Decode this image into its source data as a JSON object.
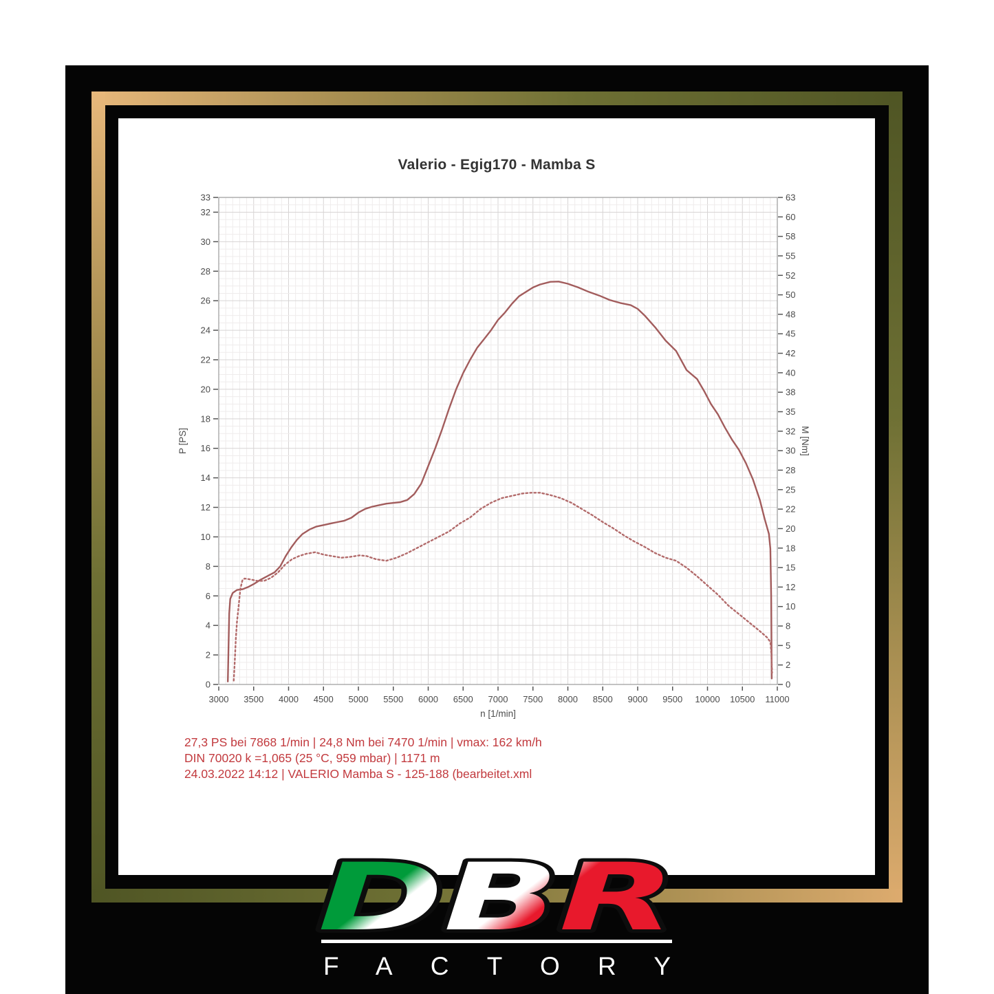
{
  "colors": {
    "frame_gold_light": "#e8b87b",
    "frame_gold_dark": "#4f5524",
    "backdrop_black": "#050505",
    "annotation_red": "#c23a3e",
    "curve_red": "#a25c5c"
  },
  "chart_data": {
    "type": "line",
    "title": "Valerio - Egig170 - Mamba S",
    "xlabel": "n [1/min]",
    "ylabel_left": "P [PS]",
    "ylabel_right": "M [Nm]",
    "grid": true,
    "xlim": [
      3000,
      11000
    ],
    "grid_minor_x": 100,
    "grid_minor_y": 0.5,
    "x_ticks": [
      3000,
      3500,
      4000,
      4500,
      5000,
      5500,
      6000,
      6500,
      7000,
      7500,
      8000,
      8500,
      9000,
      9500,
      10000,
      10500,
      11000
    ],
    "ylim_left": [
      0,
      33
    ],
    "y_ticks_left": [
      0,
      2,
      4,
      6,
      8,
      10,
      12,
      14,
      16,
      18,
      20,
      22,
      24,
      26,
      28,
      30,
      32,
      33
    ],
    "ylim_right": [
      0,
      63
    ],
    "y_ticks_right": [
      0,
      2,
      5,
      8,
      10,
      12,
      15,
      18,
      20,
      22,
      25,
      28,
      30,
      32,
      35,
      38,
      40,
      42,
      45,
      48,
      50,
      52,
      55,
      58,
      60,
      63
    ],
    "series": [
      {
        "name": "Power P [PS]",
        "axis": "left",
        "style": "solid",
        "color": "#a25c5c",
        "points": [
          [
            3130,
            0.2
          ],
          [
            3140,
            2.5
          ],
          [
            3150,
            4.8
          ],
          [
            3165,
            5.8
          ],
          [
            3200,
            6.2
          ],
          [
            3260,
            6.4
          ],
          [
            3340,
            6.45
          ],
          [
            3420,
            6.6
          ],
          [
            3500,
            6.8
          ],
          [
            3600,
            7.1
          ],
          [
            3700,
            7.35
          ],
          [
            3800,
            7.6
          ],
          [
            3880,
            8.0
          ],
          [
            3960,
            8.7
          ],
          [
            4040,
            9.3
          ],
          [
            4120,
            9.8
          ],
          [
            4200,
            10.2
          ],
          [
            4300,
            10.5
          ],
          [
            4400,
            10.7
          ],
          [
            4500,
            10.8
          ],
          [
            4600,
            10.9
          ],
          [
            4700,
            11.0
          ],
          [
            4800,
            11.1
          ],
          [
            4900,
            11.3
          ],
          [
            5000,
            11.65
          ],
          [
            5100,
            11.9
          ],
          [
            5200,
            12.05
          ],
          [
            5300,
            12.15
          ],
          [
            5400,
            12.25
          ],
          [
            5500,
            12.3
          ],
          [
            5600,
            12.35
          ],
          [
            5700,
            12.5
          ],
          [
            5800,
            12.9
          ],
          [
            5900,
            13.6
          ],
          [
            6000,
            14.8
          ],
          [
            6100,
            16.0
          ],
          [
            6200,
            17.3
          ],
          [
            6300,
            18.7
          ],
          [
            6400,
            20.0
          ],
          [
            6500,
            21.1
          ],
          [
            6600,
            22.0
          ],
          [
            6700,
            22.8
          ],
          [
            6800,
            23.4
          ],
          [
            6900,
            24.0
          ],
          [
            7000,
            24.7
          ],
          [
            7100,
            25.2
          ],
          [
            7200,
            25.8
          ],
          [
            7300,
            26.3
          ],
          [
            7400,
            26.6
          ],
          [
            7500,
            26.9
          ],
          [
            7600,
            27.1
          ],
          [
            7750,
            27.28
          ],
          [
            7868,
            27.3
          ],
          [
            8000,
            27.15
          ],
          [
            8150,
            26.9
          ],
          [
            8300,
            26.6
          ],
          [
            8450,
            26.35
          ],
          [
            8600,
            26.05
          ],
          [
            8750,
            25.85
          ],
          [
            8900,
            25.7
          ],
          [
            9000,
            25.45
          ],
          [
            9100,
            25.0
          ],
          [
            9250,
            24.2
          ],
          [
            9400,
            23.3
          ],
          [
            9550,
            22.6
          ],
          [
            9700,
            21.3
          ],
          [
            9850,
            20.7
          ],
          [
            9950,
            19.9
          ],
          [
            10050,
            19.0
          ],
          [
            10150,
            18.3
          ],
          [
            10250,
            17.4
          ],
          [
            10350,
            16.6
          ],
          [
            10450,
            15.9
          ],
          [
            10550,
            15.0
          ],
          [
            10650,
            13.9
          ],
          [
            10750,
            12.5
          ],
          [
            10820,
            11.2
          ],
          [
            10880,
            10.2
          ],
          [
            10900,
            9.2
          ],
          [
            10912,
            6.0
          ],
          [
            10920,
            0.4
          ]
        ]
      },
      {
        "name": "Torque M [Nm]",
        "axis": "right",
        "style": "dotted",
        "color": "#b26a6a",
        "points": [
          [
            3215,
            0.5
          ],
          [
            3230,
            3.0
          ],
          [
            3245,
            6.0
          ],
          [
            3260,
            8.0
          ],
          [
            3280,
            9.7
          ],
          [
            3310,
            12.4
          ],
          [
            3340,
            13.5
          ],
          [
            3370,
            13.7
          ],
          [
            3450,
            13.6
          ],
          [
            3550,
            13.4
          ],
          [
            3650,
            13.4
          ],
          [
            3750,
            13.8
          ],
          [
            3850,
            14.5
          ],
          [
            3950,
            15.5
          ],
          [
            4050,
            16.2
          ],
          [
            4150,
            16.6
          ],
          [
            4250,
            16.9
          ],
          [
            4380,
            17.1
          ],
          [
            4500,
            16.8
          ],
          [
            4620,
            16.6
          ],
          [
            4760,
            16.4
          ],
          [
            4880,
            16.5
          ],
          [
            5020,
            16.7
          ],
          [
            5120,
            16.6
          ],
          [
            5250,
            16.2
          ],
          [
            5400,
            16.0
          ],
          [
            5550,
            16.4
          ],
          [
            5700,
            17.0
          ],
          [
            5850,
            17.7
          ],
          [
            6000,
            18.4
          ],
          [
            6150,
            19.1
          ],
          [
            6300,
            19.8
          ],
          [
            6450,
            20.8
          ],
          [
            6600,
            21.6
          ],
          [
            6750,
            22.7
          ],
          [
            6900,
            23.5
          ],
          [
            7050,
            24.1
          ],
          [
            7200,
            24.4
          ],
          [
            7350,
            24.7
          ],
          [
            7470,
            24.8
          ],
          [
            7600,
            24.8
          ],
          [
            7750,
            24.5
          ],
          [
            7900,
            24.1
          ],
          [
            8050,
            23.5
          ],
          [
            8200,
            22.7
          ],
          [
            8350,
            21.9
          ],
          [
            8500,
            21.0
          ],
          [
            8650,
            20.2
          ],
          [
            8800,
            19.3
          ],
          [
            8950,
            18.5
          ],
          [
            9100,
            17.8
          ],
          [
            9250,
            17.0
          ],
          [
            9400,
            16.4
          ],
          [
            9550,
            16.0
          ],
          [
            9700,
            15.1
          ],
          [
            9850,
            14.0
          ],
          [
            10000,
            12.8
          ],
          [
            10150,
            11.6
          ],
          [
            10300,
            10.2
          ],
          [
            10450,
            9.1
          ],
          [
            10600,
            8.0
          ],
          [
            10750,
            6.9
          ],
          [
            10850,
            6.1
          ],
          [
            10900,
            5.5
          ],
          [
            10915,
            4.0
          ],
          [
            10925,
            1.5
          ]
        ]
      }
    ],
    "peaks": {
      "power": "27,3 PS bei 7868 1/min",
      "torque": "24,8 Nm bei 7470 1/min",
      "vmax": "162 km/h"
    }
  },
  "annotations": {
    "lines": [
      "27,3 PS bei 7868 1/min | 24,8 Nm bei 7470 1/min | vmax: 162 km/h",
      "DIN 70020 k =1,065 (25 °C, 959 mbar) | 1171 m",
      "24.03.2022 14:12 | VALERIO Mamba S - 125-188 (bearbeitet.xml"
    ]
  },
  "logo": {
    "brand": "DBR",
    "subtitle": "FACTORY",
    "flag_green": "#009b3a",
    "flag_white": "#ffffff",
    "flag_red": "#e8192c",
    "outline_black": "#0d0d0d"
  }
}
